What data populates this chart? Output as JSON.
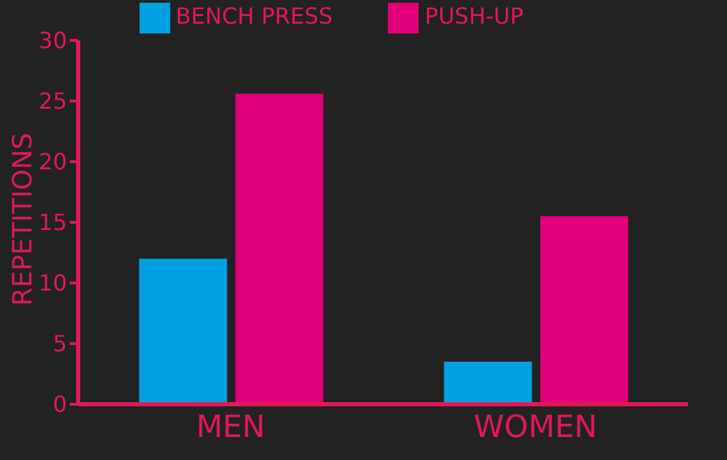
{
  "chart_data": {
    "type": "bar",
    "ylabel": "REPETITIONS",
    "categories": [
      "MEN",
      "WOMEN"
    ],
    "series": [
      {
        "name": "BENCH PRESS",
        "color": "#00a0e2",
        "values": [
          12,
          3.5
        ]
      },
      {
        "name": "PUSH-UP",
        "color": "#e2007a",
        "values": [
          25.6,
          15.5
        ]
      }
    ],
    "ylim": [
      0,
      30
    ],
    "yticks": [
      0,
      5,
      10,
      15,
      20,
      25,
      30
    ],
    "grid": false,
    "legend": "top"
  }
}
